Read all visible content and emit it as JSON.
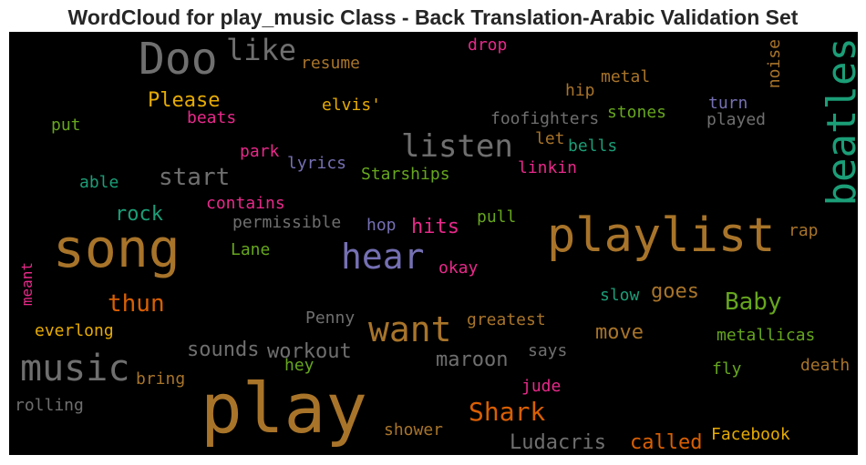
{
  "chart_data": {
    "type": "wordcloud",
    "title": "WordCloud for play_music Class - Back Translation-Arabic Validation Set",
    "words": [
      {
        "text": "play",
        "color": "#a8742a"
      },
      {
        "text": "song",
        "color": "#a8742a"
      },
      {
        "text": "playlist",
        "color": "#a8742a"
      },
      {
        "text": "music",
        "color": "#6f6f6f"
      },
      {
        "text": "Doo",
        "color": "#6f6f6f"
      },
      {
        "text": "want",
        "color": "#a8742a"
      },
      {
        "text": "hear",
        "color": "#7570b3"
      },
      {
        "text": "beatles",
        "color": "#1b9e77"
      },
      {
        "text": "listen",
        "color": "#6f6f6f"
      },
      {
        "text": "like",
        "color": "#6f6f6f"
      },
      {
        "text": "Shark",
        "color": "#d95f02"
      },
      {
        "text": "thun",
        "color": "#d95f02"
      },
      {
        "text": "Baby",
        "color": "#66a61e"
      },
      {
        "text": "start",
        "color": "#6f6f6f"
      },
      {
        "text": "Please",
        "color": "#e6ab02"
      },
      {
        "text": "Ludacris",
        "color": "#6f6f6f"
      },
      {
        "text": "called",
        "color": "#d95f02"
      },
      {
        "text": "workout",
        "color": "#6f6f6f"
      },
      {
        "text": "sounds",
        "color": "#6f6f6f"
      },
      {
        "text": "maroon",
        "color": "#6f6f6f"
      },
      {
        "text": "move",
        "color": "#a8742a"
      },
      {
        "text": "hits",
        "color": "#e7298a"
      },
      {
        "text": "goes",
        "color": "#a8742a"
      },
      {
        "text": "rock",
        "color": "#1b9e77"
      },
      {
        "text": "Facebook",
        "color": "#e6ab02"
      },
      {
        "text": "stones",
        "color": "#66a61e"
      },
      {
        "text": "foofighters",
        "color": "#6f6f6f"
      },
      {
        "text": "metallicas",
        "color": "#66a61e"
      },
      {
        "text": "Starships",
        "color": "#66a61e"
      },
      {
        "text": "greatest",
        "color": "#a8742a"
      },
      {
        "text": "permissible",
        "color": "#6f6f6f"
      },
      {
        "text": "contains",
        "color": "#e7298a"
      },
      {
        "text": "everlong",
        "color": "#e6ab02"
      },
      {
        "text": "rolling",
        "color": "#6f6f6f"
      },
      {
        "text": "shower",
        "color": "#a8742a"
      },
      {
        "text": "death",
        "color": "#a8742a"
      },
      {
        "text": "resume",
        "color": "#a8742a"
      },
      {
        "text": "elvis'",
        "color": "#e6ab02"
      },
      {
        "text": "beats",
        "color": "#e7298a"
      },
      {
        "text": "lyrics",
        "color": "#7570b3"
      },
      {
        "text": "linkin",
        "color": "#e7298a"
      },
      {
        "text": "played",
        "color": "#6f6f6f"
      },
      {
        "text": "metal",
        "color": "#a8742a"
      },
      {
        "text": "noise",
        "color": "#a8742a"
      },
      {
        "text": "Penny",
        "color": "#6f6f6f"
      },
      {
        "text": "drop",
        "color": "#e7298a"
      },
      {
        "text": "bells",
        "color": "#1b9e77"
      },
      {
        "text": "slow",
        "color": "#1b9e77"
      },
      {
        "text": "okay",
        "color": "#e7298a"
      },
      {
        "text": "pull",
        "color": "#66a61e"
      },
      {
        "text": "hop",
        "color": "#7570b3"
      },
      {
        "text": "Lane",
        "color": "#66a61e"
      },
      {
        "text": "park",
        "color": "#e7298a"
      },
      {
        "text": "says",
        "color": "#6f6f6f"
      },
      {
        "text": "jude",
        "color": "#e7298a"
      },
      {
        "text": "bring",
        "color": "#a8742a"
      },
      {
        "text": "hey",
        "color": "#66a61e"
      },
      {
        "text": "fly",
        "color": "#66a61e"
      },
      {
        "text": "rap",
        "color": "#a8742a"
      },
      {
        "text": "turn",
        "color": "#7570b3"
      },
      {
        "text": "hip",
        "color": "#a8742a"
      },
      {
        "text": "let",
        "color": "#a8742a"
      },
      {
        "text": "put",
        "color": "#66a61e"
      },
      {
        "text": "able",
        "color": "#1b9e77"
      },
      {
        "text": "meant",
        "color": "#e7298a"
      }
    ]
  }
}
